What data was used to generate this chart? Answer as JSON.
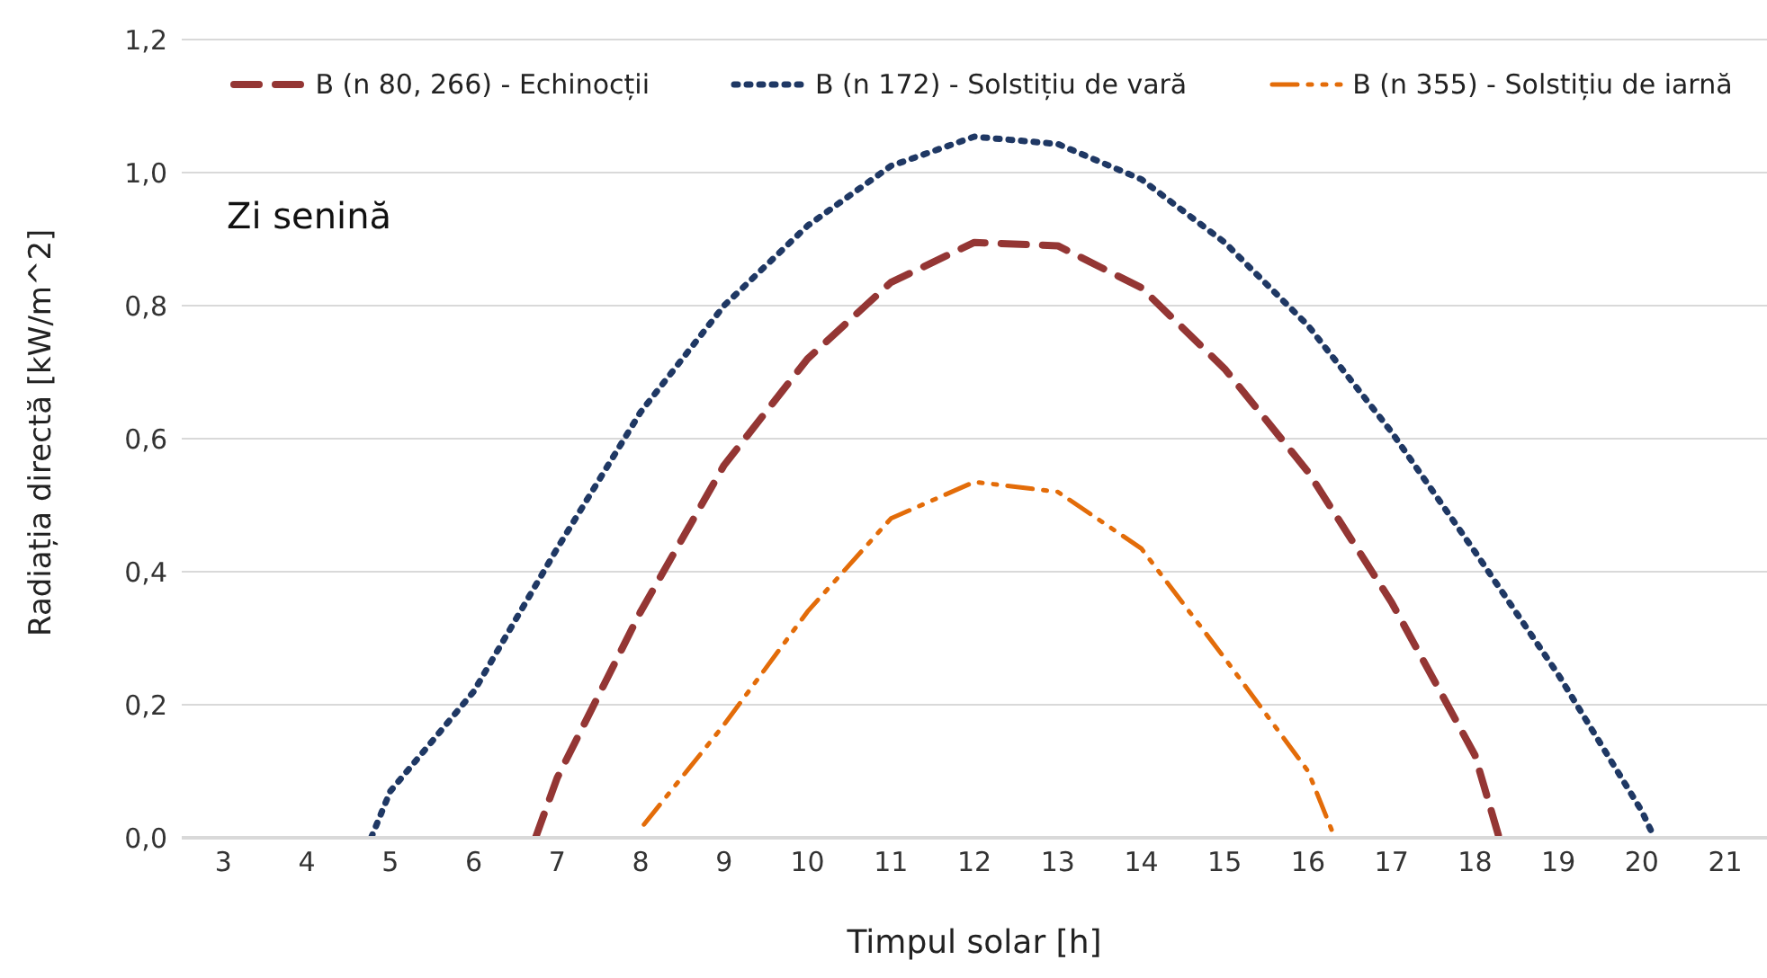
{
  "chart_data": {
    "type": "line",
    "xlabel": "Timpul solar [h]",
    "ylabel": "Radiația directă [kW/m^2]",
    "annotations": [
      "Zi senină"
    ],
    "xlim": [
      2.5,
      21.5
    ],
    "xticks": [
      3,
      4,
      5,
      6,
      7,
      8,
      9,
      10,
      11,
      12,
      13,
      14,
      15,
      16,
      17,
      18,
      19,
      20,
      21
    ],
    "ylim": [
      0,
      1.2
    ],
    "yticks": [
      {
        "value": 0,
        "label": "0,0"
      },
      {
        "value": 0.2,
        "label": "0,2"
      },
      {
        "value": 0.4,
        "label": "0,4"
      },
      {
        "value": 0.6,
        "label": "0,6"
      },
      {
        "value": 0.8,
        "label": "0,8"
      },
      {
        "value": 1,
        "label": "1,0"
      },
      {
        "value": 1.2,
        "label": "1,2"
      }
    ],
    "grid": "y",
    "legend": "top",
    "marker": "none",
    "series": [
      {
        "name": "B (n 80, 266) - Echinocții",
        "color": "#943634",
        "line_style": "dashed",
        "x": [
          6.74,
          7,
          8,
          9,
          10,
          11,
          12,
          13,
          14,
          15,
          16,
          17,
          18,
          18.29
        ],
        "values": [
          0,
          0.09,
          0.34,
          0.56,
          0.72,
          0.835,
          0.895,
          0.89,
          0.827,
          0.705,
          0.55,
          0.354,
          0.124,
          0
        ]
      },
      {
        "name": "B (n 172) - Solstițiu de vară",
        "color": "#1f3864",
        "line_style": "dotted",
        "x": [
          4.77,
          5,
          6,
          7,
          8,
          9,
          10,
          11,
          12,
          13,
          14,
          15,
          16,
          17,
          18,
          19,
          20,
          20.15
        ],
        "values": [
          0,
          0.07,
          0.22,
          0.435,
          0.64,
          0.8,
          0.92,
          1.01,
          1.054,
          1.043,
          0.99,
          0.895,
          0.77,
          0.61,
          0.43,
          0.245,
          0.04,
          0
        ]
      },
      {
        "name": "B (n 355) - Solstițiu de iarnă",
        "color": "#e36c09",
        "line_style": "dashed",
        "x": [
          8.04,
          9,
          10,
          11,
          12,
          13,
          14,
          15,
          16,
          16.32
        ],
        "values": [
          0.02,
          0.17,
          0.34,
          0.48,
          0.535,
          0.52,
          0.435,
          0.27,
          0.1,
          0
        ]
      }
    ]
  }
}
